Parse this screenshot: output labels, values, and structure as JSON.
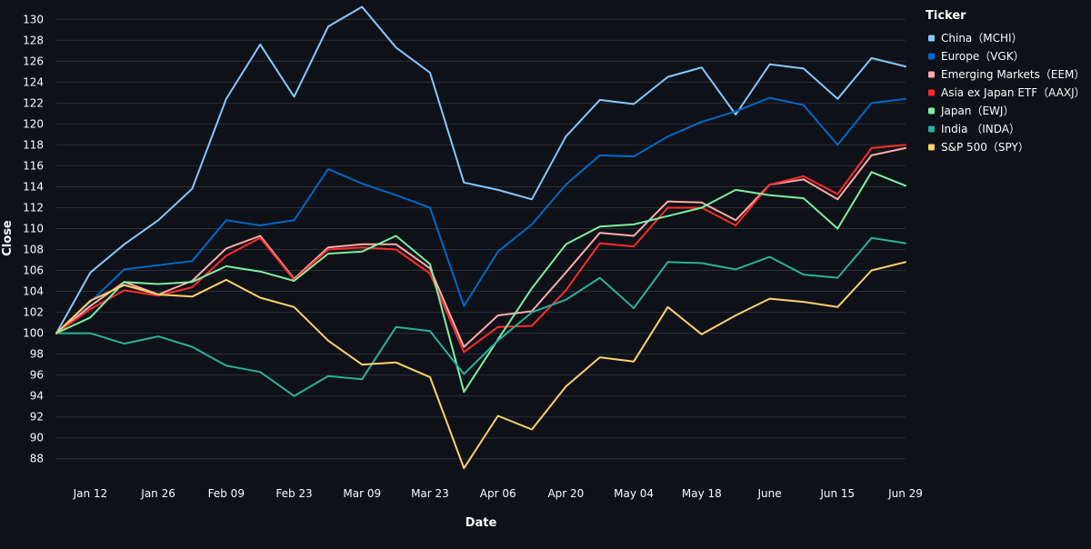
{
  "chart_data": {
    "type": "line",
    "xlabel": "Date",
    "ylabel": "Close",
    "ylim": [
      86.5,
      131.5
    ],
    "yticks": [
      88,
      90,
      92,
      94,
      96,
      98,
      100,
      102,
      104,
      106,
      108,
      110,
      112,
      114,
      116,
      118,
      120,
      122,
      124,
      126,
      128,
      130
    ],
    "x": [
      "2020-01-05",
      "2020-01-12",
      "2020-01-19",
      "2020-01-26",
      "2020-02-02",
      "2020-02-09",
      "2020-02-16",
      "2020-02-23",
      "2020-03-01",
      "2020-03-08",
      "2020-03-15",
      "2020-03-22",
      "2020-03-29",
      "2020-04-05",
      "2020-04-12",
      "2020-04-19",
      "2020-04-26",
      "2020-05-03",
      "2020-05-10",
      "2020-05-17",
      "2020-05-24",
      "2020-05-31",
      "2020-06-07",
      "2020-06-14",
      "2020-06-21",
      "2020-06-28"
    ],
    "xticks": [
      {
        "date": "2020-01-12",
        "label": "Jan 12"
      },
      {
        "date": "2020-01-26",
        "label": "Jan 26"
      },
      {
        "date": "2020-02-09",
        "label": "Feb 09"
      },
      {
        "date": "2020-02-23",
        "label": "Feb 23"
      },
      {
        "date": "2020-03-08",
        "label": "Mar 09"
      },
      {
        "date": "2020-03-22",
        "label": "Mar 23"
      },
      {
        "date": "2020-04-05",
        "label": "Apr 06"
      },
      {
        "date": "2020-04-19",
        "label": "Apr 20"
      },
      {
        "date": "2020-05-03",
        "label": "May 04"
      },
      {
        "date": "2020-05-17",
        "label": "May 18"
      },
      {
        "date": "2020-05-31",
        "label": "June"
      },
      {
        "date": "2020-06-14",
        "label": "Jun 15"
      },
      {
        "date": "2020-06-28",
        "label": "Jun 29"
      }
    ],
    "legend_title": "Ticker",
    "legend_position": "top-right",
    "grid": true,
    "series": [
      {
        "name": "China（MCHI）",
        "color": "#83c9ff",
        "values": [
          100,
          105.8,
          108.5,
          110.8,
          113.8,
          122.4,
          127.6,
          122.6,
          129.3,
          131.2,
          127.3,
          124.9,
          114.4,
          113.7,
          112.8,
          118.8,
          122.3,
          121.9,
          124.5,
          125.4,
          120.9,
          125.7,
          125.3,
          122.4,
          126.3,
          125.5
        ]
      },
      {
        "name": "Europe（VGK）",
        "color": "#0068c9",
        "values": [
          100,
          103.0,
          106.1,
          106.5,
          106.9,
          110.8,
          110.3,
          110.8,
          115.7,
          114.3,
          113.2,
          112.0,
          102.6,
          107.8,
          110.4,
          114.2,
          117.0,
          116.9,
          118.8,
          120.2,
          121.2,
          122.5,
          121.8,
          118.0,
          122.0,
          122.4
        ]
      },
      {
        "name": "Emerging Markets（EEM）",
        "color": "#ffabab",
        "values": [
          100,
          102.6,
          104.9,
          103.7,
          105.0,
          108.1,
          109.3,
          105.2,
          108.2,
          108.5,
          108.5,
          106.2,
          98.7,
          101.7,
          102.1,
          105.8,
          109.6,
          109.3,
          112.6,
          112.5,
          110.8,
          114.2,
          114.7,
          112.8,
          117.0,
          117.7
        ]
      },
      {
        "name": "Asia ex Japan ETF（AAXJ）",
        "color": "#ff2b2b",
        "values": [
          100,
          102.3,
          104.1,
          103.6,
          104.4,
          107.4,
          109.1,
          105.1,
          108.0,
          108.2,
          108.0,
          105.7,
          98.2,
          100.6,
          100.7,
          104.1,
          108.6,
          108.3,
          112.0,
          112.0,
          110.3,
          114.2,
          115.0,
          113.3,
          117.7,
          118.0
        ]
      },
      {
        "name": "Japan（EWJ）",
        "color": "#7defa1",
        "values": [
          100,
          101.5,
          104.9,
          104.7,
          104.9,
          106.4,
          105.9,
          105.0,
          107.6,
          107.8,
          109.3,
          106.6,
          94.4,
          99.4,
          104.3,
          108.5,
          110.2,
          110.4,
          111.2,
          112.0,
          113.7,
          113.2,
          112.9,
          110.0,
          115.4,
          114.1
        ]
      },
      {
        "name": "India （INDA）",
        "color": "#29b09d",
        "values": [
          100,
          100.0,
          99.0,
          99.7,
          98.7,
          96.9,
          96.3,
          94.0,
          95.9,
          95.6,
          100.6,
          100.2,
          96.1,
          99.3,
          102.0,
          103.2,
          105.3,
          102.4,
          106.8,
          106.7,
          106.1,
          107.3,
          105.6,
          105.3,
          109.1,
          108.6
        ]
      },
      {
        "name": "S&P 500（SPY）",
        "color": "#ffd16a",
        "values": [
          100,
          103.1,
          104.6,
          103.7,
          103.5,
          105.1,
          103.4,
          102.5,
          99.3,
          97.0,
          97.2,
          95.8,
          87.1,
          92.1,
          90.8,
          94.9,
          97.7,
          97.3,
          102.5,
          99.9,
          101.7,
          103.3,
          103.0,
          102.5,
          106.0,
          106.8
        ]
      }
    ]
  }
}
